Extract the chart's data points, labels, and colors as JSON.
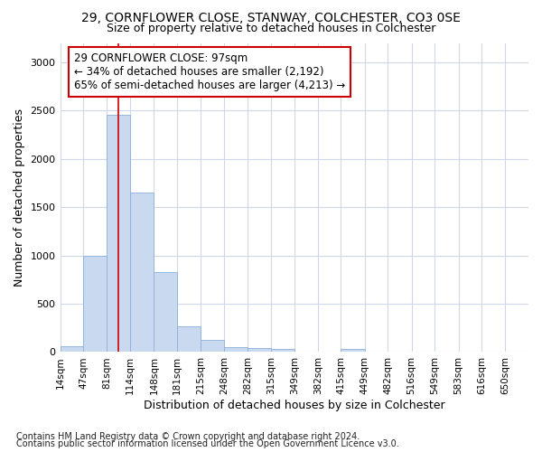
{
  "title_line1": "29, CORNFLOWER CLOSE, STANWAY, COLCHESTER, CO3 0SE",
  "title_line2": "Size of property relative to detached houses in Colchester",
  "xlabel": "Distribution of detached houses by size in Colchester",
  "ylabel": "Number of detached properties",
  "footnote1": "Contains HM Land Registry data © Crown copyright and database right 2024.",
  "footnote2": "Contains public sector information licensed under the Open Government Licence v3.0.",
  "annotation_line1": "29 CORNFLOWER CLOSE: 97sqm",
  "annotation_line2": "← 34% of detached houses are smaller (2,192)",
  "annotation_line3": "65% of semi-detached houses are larger (4,213) →",
  "bar_color": "#c8d9f0",
  "bar_edge_color": "#8ab0d8",
  "vline_color": "#cc0000",
  "vline_x": 97,
  "bin_edges": [
    14,
    47,
    81,
    114,
    148,
    181,
    215,
    248,
    282,
    315,
    349,
    382,
    415,
    449,
    482,
    516,
    549,
    583,
    616,
    650,
    683
  ],
  "bar_heights": [
    60,
    1000,
    2460,
    1650,
    830,
    270,
    125,
    50,
    40,
    30,
    5,
    0,
    30,
    0,
    0,
    0,
    0,
    0,
    0,
    0
  ],
  "ylim": [
    0,
    3200
  ],
  "yticks": [
    0,
    500,
    1000,
    1500,
    2000,
    2500,
    3000
  ],
  "fig_bg_color": "#ffffff",
  "plot_bg_color": "#ffffff",
  "grid_color": "#d0d8e8",
  "annotation_box_color": "#ffffff",
  "annotation_box_edge": "#cc0000"
}
